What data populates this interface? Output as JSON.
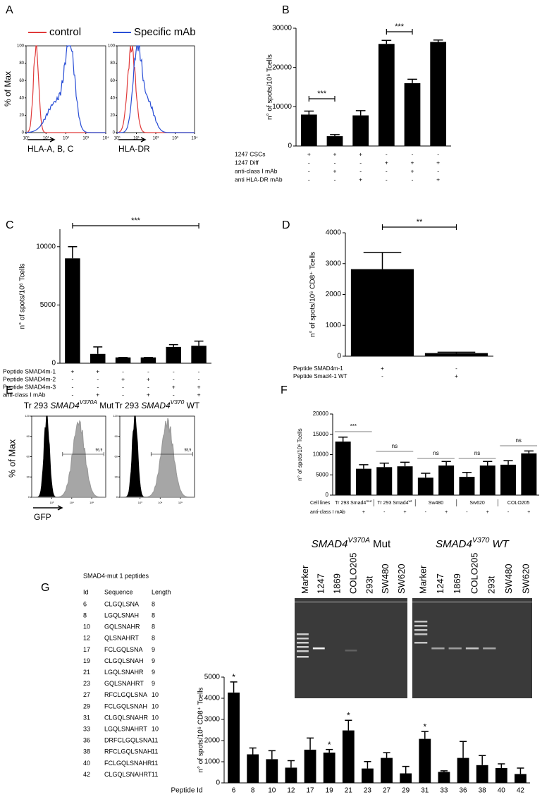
{
  "panel_labels": [
    "A",
    "B",
    "C",
    "D",
    "E",
    "F",
    "G"
  ],
  "flow_a": {
    "legend": [
      "control",
      "Specific mAb"
    ],
    "colors": [
      "#e03a3a",
      "#2a4fd6"
    ],
    "ylabel": "% of Max",
    "ylim": [
      0,
      100
    ],
    "yticks": [
      0,
      20,
      40,
      60,
      80,
      100
    ],
    "xlim": [
      1,
      10000
    ],
    "xticks": [
      {
        "value": 1,
        "label": "10⁰"
      },
      {
        "value": 10,
        "label": "10¹"
      },
      {
        "value": 100,
        "label": "10²"
      },
      {
        "value": 1000,
        "label": "10³"
      },
      {
        "value": 10000,
        "label": "10⁴"
      }
    ],
    "xlabels": [
      "HLA-A, B, C",
      "HLA-DR"
    ]
  },
  "flow_e": {
    "ylabel": "% of Max",
    "xlabel": "GFP",
    "ylim": [
      0,
      120
    ],
    "yticks": [
      0,
      30,
      60,
      90,
      120
    ],
    "xlim": [
      100,
      500000
    ],
    "xticks": [
      {
        "value": 1000,
        "label": "10³"
      },
      {
        "value": 10000,
        "label": "10⁴"
      },
      {
        "value": 100000,
        "label": "10⁵"
      }
    ],
    "titles": [
      [
        "Tr 293 ",
        "SMAD4",
        "V370A",
        " Mut"
      ],
      [
        "Tr 293 ",
        "SMAD4",
        "V370",
        " WT"
      ]
    ],
    "gates": [
      "96,9",
      "98,9"
    ]
  },
  "chart_data": [
    {
      "type": "bar",
      "color": "#000000",
      "ylabel": "n° of spots/10⁶ Tcells",
      "values": [
        8000,
        2500,
        7800,
        26000,
        16000,
        26500
      ],
      "errors": [
        900,
        400,
        1200,
        900,
        1000,
        500
      ],
      "ylim": [
        0,
        30000
      ],
      "yticks": [
        0,
        10000,
        20000,
        30000
      ],
      "rows": [
        {
          "label": "1247 CSCs",
          "signs": [
            "+",
            "+",
            "+",
            "-",
            "-",
            "-"
          ]
        },
        {
          "label": "1247 Diff",
          "signs": [
            "-",
            "-",
            "-",
            "+",
            "+",
            "+"
          ]
        },
        {
          "label": "anti-class I mAb",
          "signs": [
            "-",
            "+",
            "-",
            "-",
            "+",
            "-"
          ]
        },
        {
          "label": "anti HLA-DR mAb",
          "signs": [
            "-",
            "-",
            "+",
            "-",
            "-",
            "+"
          ]
        }
      ],
      "annotations": [
        "***",
        "***"
      ]
    },
    {
      "type": "bar",
      "color": "#000000",
      "ylabel": "n° of spots/10⁶ Tcells",
      "values": [
        9000,
        800,
        500,
        500,
        1400,
        1500
      ],
      "errors": [
        1000,
        600,
        0,
        0,
        200,
        400
      ],
      "ylim": [
        0,
        11500
      ],
      "yticks": [
        0,
        5000,
        10000
      ],
      "rows": [
        {
          "label": "Peptide SMAD4m-1",
          "signs": [
            "+",
            "+",
            "-",
            "-",
            "-",
            "-"
          ]
        },
        {
          "label": "Peptide SMAD4m-2",
          "signs": [
            "-",
            "-",
            "+",
            "+",
            "-",
            "-"
          ]
        },
        {
          "label": "Peptide SMAD4m-3",
          "signs": [
            "-",
            "-",
            "-",
            "-",
            "+",
            "+"
          ]
        },
        {
          "label": "anti-class I mAb",
          "signs": [
            "-",
            "+",
            "-",
            "+",
            "-",
            "+"
          ]
        }
      ],
      "annotations": [
        "***"
      ]
    },
    {
      "type": "bar",
      "color": "#000000",
      "ylabel": "n° of spots/10⁶ CD8⁺ Tcells",
      "values": [
        2820,
        100
      ],
      "errors": [
        540,
        30
      ],
      "ylim": [
        0,
        4000
      ],
      "yticks": [
        0,
        1000,
        2000,
        3000,
        4000
      ],
      "rows": [
        {
          "label": "Peptide SMAD4m-1",
          "signs": [
            "+",
            "-"
          ]
        },
        {
          "label": "Peptide Smad4-1 WT",
          "signs": [
            "-",
            "+"
          ]
        }
      ],
      "annotations": [
        "**"
      ]
    },
    {
      "type": "bar",
      "color": "#000000",
      "ylabel": "n° of spots/10⁶ Tcells",
      "values": [
        13200,
        6500,
        6900,
        7100,
        4300,
        7300,
        4500,
        7300,
        7500,
        10300
      ],
      "errors": [
        1100,
        1000,
        1000,
        1000,
        1100,
        1000,
        1100,
        1000,
        1000,
        600
      ],
      "ylim": [
        0,
        20000
      ],
      "yticks": [
        0,
        5000,
        10000,
        15000,
        20000
      ],
      "groups_label": "Cell lines",
      "groups": [
        [
          "Tr 293 Smad4",
          "mut"
        ],
        [
          "Tr 293 Smad4",
          "wt"
        ],
        [
          "Sw480"
        ],
        [
          "Sw620"
        ],
        [
          "COLO205"
        ]
      ],
      "rows": [
        {
          "label": "anti-class I mAb",
          "signs": [
            "-",
            "+",
            "-",
            "+",
            "-",
            "+",
            "-",
            "+",
            "-",
            "+"
          ]
        }
      ],
      "annotations": [
        "***",
        "ns",
        "ns",
        "ns",
        "ns"
      ]
    },
    {
      "type": "bar",
      "color": "#000000",
      "ylabel": "n° of spots/10⁶ CD8⁺ Tcells",
      "xlabel": "Peptide Id",
      "categories": [
        "6",
        "8",
        "10",
        "12",
        "17",
        "19",
        "21",
        "23",
        "27",
        "29",
        "31",
        "33",
        "36",
        "38",
        "40",
        "42"
      ],
      "values": [
        4270,
        1350,
        1120,
        720,
        1570,
        1430,
        2480,
        680,
        1180,
        450,
        2080,
        520,
        1180,
        840,
        700,
        420
      ],
      "errors": [
        500,
        300,
        400,
        330,
        550,
        150,
        480,
        330,
        250,
        330,
        350,
        50,
        780,
        450,
        200,
        280
      ],
      "ylim": [
        0,
        5000
      ],
      "yticks": [
        0,
        1000,
        2000,
        3000,
        4000,
        5000
      ],
      "annotations": [
        "*",
        "*",
        "*",
        "*"
      ]
    }
  ],
  "gel": [
    {
      "title": [
        "SMAD4",
        "V370A",
        " Mut"
      ],
      "lanes": [
        "Marker",
        "1247",
        "1869",
        "COLO205",
        "293t",
        "SW480",
        "SW620"
      ]
    },
    {
      "title": [
        "SMAD4",
        "V370",
        " WT"
      ],
      "lanes": [
        "Marker",
        "1247",
        "1869",
        "COLO205",
        "293t",
        "SW480",
        "SW620"
      ]
    }
  ],
  "peptide_table": {
    "title": "SMAD4-mut 1 peptides",
    "columns": [
      "Id",
      "Sequence",
      "Length"
    ],
    "rows": [
      [
        6,
        "CLGQLSNA",
        8
      ],
      [
        8,
        "LGQLSNAH",
        8
      ],
      [
        10,
        "GQLSNAHR",
        8
      ],
      [
        12,
        "QLSNAHRT",
        8
      ],
      [
        17,
        "FCLGQLSNA",
        9
      ],
      [
        19,
        "CLGQLSNAH",
        9
      ],
      [
        21,
        "LGQLSNAHR",
        9
      ],
      [
        23,
        "GQLSNAHRT",
        9
      ],
      [
        27,
        "RFCLGQLSNA",
        10
      ],
      [
        29,
        "FCLGQLSNAH",
        10
      ],
      [
        31,
        "CLGQLSNAHR",
        10
      ],
      [
        33,
        "LGQLSNAHRT",
        10
      ],
      [
        36,
        "DRFCLGQLSNA",
        11
      ],
      [
        38,
        "RFCLGQLSNAH",
        11
      ],
      [
        40,
        "FCLGQLSNAHR",
        11
      ],
      [
        42,
        "CLGQLSNAHRT",
        11
      ]
    ]
  }
}
